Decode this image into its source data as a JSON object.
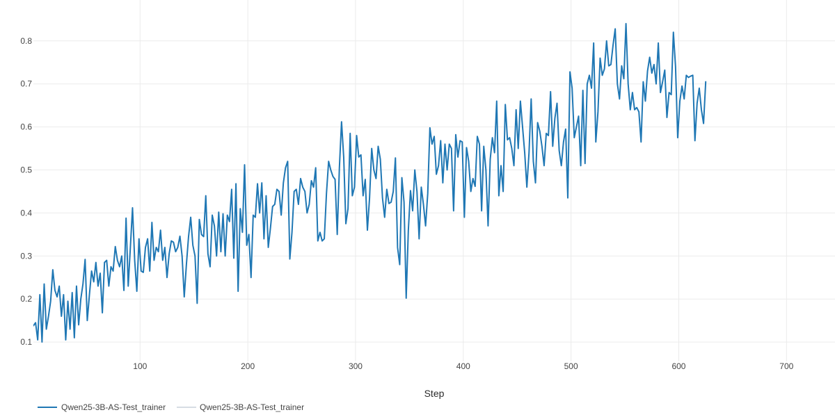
{
  "chart_data": {
    "type": "line",
    "title": "",
    "xlabel": "Step",
    "ylabel": "",
    "xlim": [
      1,
      745
    ],
    "ylim": [
      0.055,
      0.895
    ],
    "x_ticks": [
      100,
      200,
      300,
      400,
      500,
      600,
      700
    ],
    "y_ticks": [
      0.1,
      0.2,
      0.3,
      0.4,
      0.5,
      0.6,
      0.7,
      0.8
    ],
    "grid": true,
    "legend_position": "bottom-left",
    "series": [
      {
        "name": "Qwen25-3B-AS-Test_trainer",
        "color": "#1f77b4",
        "x_start": 1,
        "x_step": 2,
        "values": [
          0.138,
          0.145,
          0.105,
          0.21,
          0.1,
          0.235,
          0.13,
          0.16,
          0.195,
          0.268,
          0.22,
          0.205,
          0.23,
          0.16,
          0.21,
          0.105,
          0.195,
          0.13,
          0.215,
          0.11,
          0.23,
          0.14,
          0.2,
          0.235,
          0.292,
          0.15,
          0.21,
          0.265,
          0.24,
          0.285,
          0.23,
          0.26,
          0.168,
          0.285,
          0.29,
          0.23,
          0.275,
          0.265,
          0.322,
          0.29,
          0.275,
          0.3,
          0.22,
          0.388,
          0.23,
          0.32,
          0.412,
          0.29,
          0.218,
          0.34,
          0.265,
          0.262,
          0.32,
          0.34,
          0.265,
          0.378,
          0.29,
          0.32,
          0.31,
          0.36,
          0.29,
          0.32,
          0.25,
          0.305,
          0.335,
          0.332,
          0.31,
          0.32,
          0.346,
          0.3,
          0.205,
          0.28,
          0.345,
          0.39,
          0.325,
          0.3,
          0.19,
          0.385,
          0.35,
          0.345,
          0.44,
          0.305,
          0.275,
          0.395,
          0.37,
          0.3,
          0.402,
          0.31,
          0.398,
          0.3,
          0.395,
          0.38,
          0.455,
          0.295,
          0.468,
          0.218,
          0.41,
          0.355,
          0.512,
          0.325,
          0.35,
          0.25,
          0.395,
          0.39,
          0.468,
          0.4,
          0.47,
          0.34,
          0.44,
          0.32,
          0.365,
          0.415,
          0.42,
          0.455,
          0.45,
          0.395,
          0.47,
          0.505,
          0.52,
          0.293,
          0.355,
          0.45,
          0.455,
          0.42,
          0.48,
          0.46,
          0.45,
          0.4,
          0.42,
          0.475,
          0.46,
          0.505,
          0.335,
          0.355,
          0.335,
          0.34,
          0.445,
          0.52,
          0.5,
          0.485,
          0.478,
          0.35,
          0.505,
          0.612,
          0.53,
          0.375,
          0.41,
          0.585,
          0.44,
          0.46,
          0.58,
          0.53,
          0.535,
          0.44,
          0.478,
          0.36,
          0.435,
          0.55,
          0.5,
          0.48,
          0.555,
          0.525,
          0.435,
          0.39,
          0.455,
          0.422,
          0.425,
          0.45,
          0.528,
          0.32,
          0.28,
          0.482,
          0.425,
          0.202,
          0.36,
          0.452,
          0.405,
          0.5,
          0.45,
          0.34,
          0.46,
          0.42,
          0.37,
          0.445,
          0.598,
          0.56,
          0.578,
          0.49,
          0.51,
          0.568,
          0.47,
          0.56,
          0.5,
          0.56,
          0.55,
          0.405,
          0.582,
          0.53,
          0.568,
          0.565,
          0.39,
          0.552,
          0.52,
          0.45,
          0.48,
          0.462,
          0.578,
          0.56,
          0.405,
          0.555,
          0.5,
          0.37,
          0.525,
          0.575,
          0.54,
          0.66,
          0.44,
          0.51,
          0.45,
          0.652,
          0.57,
          0.575,
          0.55,
          0.51,
          0.64,
          0.55,
          0.66,
          0.6,
          0.54,
          0.46,
          0.54,
          0.665,
          0.52,
          0.47,
          0.61,
          0.59,
          0.555,
          0.51,
          0.585,
          0.58,
          0.682,
          0.555,
          0.62,
          0.655,
          0.545,
          0.51,
          0.565,
          0.595,
          0.435,
          0.728,
          0.69,
          0.575,
          0.6,
          0.625,
          0.51,
          0.685,
          0.515,
          0.7,
          0.72,
          0.69,
          0.795,
          0.565,
          0.635,
          0.76,
          0.72,
          0.735,
          0.8,
          0.742,
          0.745,
          0.79,
          0.828,
          0.7,
          0.665,
          0.742,
          0.712,
          0.84,
          0.7,
          0.64,
          0.68,
          0.64,
          0.645,
          0.635,
          0.565,
          0.705,
          0.66,
          0.73,
          0.762,
          0.725,
          0.745,
          0.7,
          0.795,
          0.68,
          0.705,
          0.732,
          0.622,
          0.68,
          0.675,
          0.82,
          0.74,
          0.575,
          0.66,
          0.695,
          0.665,
          0.72,
          0.715,
          0.718,
          0.72,
          0.568,
          0.655,
          0.69,
          0.64,
          0.608,
          0.705
        ]
      },
      {
        "name": "Qwen25-3B-AS-Test_trainer",
        "color": "#d6dde4",
        "values": []
      }
    ]
  }
}
